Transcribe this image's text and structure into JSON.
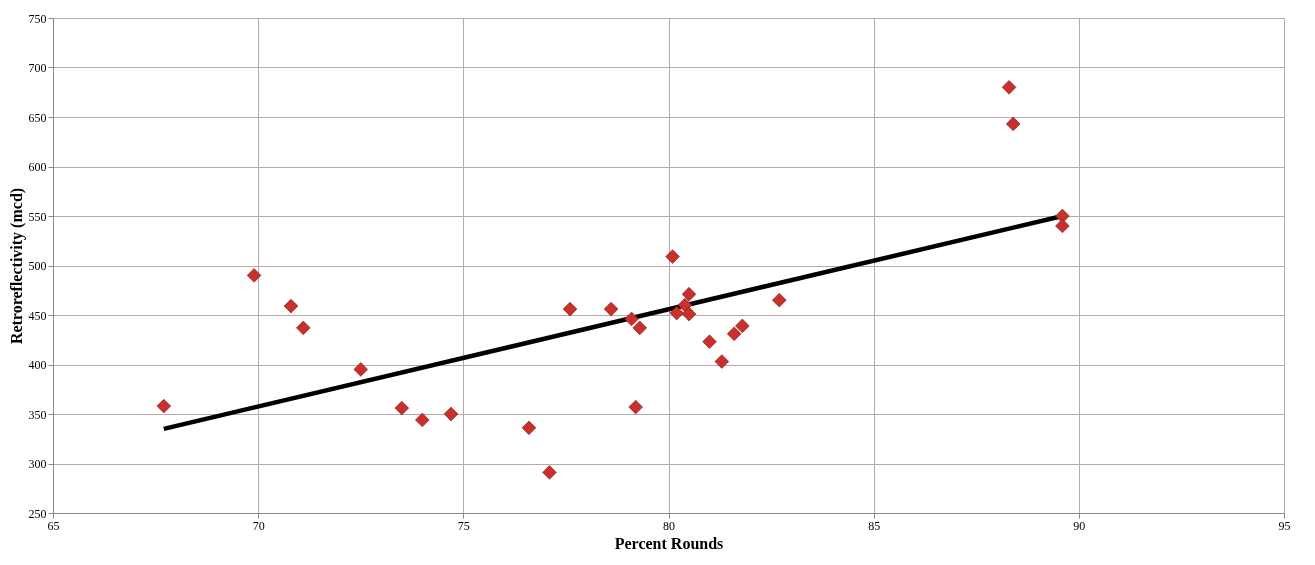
{
  "chart_data": {
    "type": "scatter",
    "xlabel": "Percent Rounds",
    "ylabel": "Retroreflectivity (mcd)",
    "xlim": [
      65,
      95
    ],
    "xticks": [
      65,
      70,
      75,
      80,
      85,
      90,
      95
    ],
    "ylim": [
      250,
      750
    ],
    "yticks": [
      250,
      300,
      350,
      400,
      450,
      500,
      550,
      600,
      650,
      700,
      750
    ],
    "grid": true,
    "marker": "diamond",
    "series": [
      {
        "color": "#c8302c",
        "x": [
          67.7,
          69.9,
          70.8,
          71.1,
          72.5,
          73.5,
          74.0,
          74.7,
          76.6,
          77.1,
          77.6,
          78.6,
          79.1,
          79.2,
          79.3,
          80.1,
          80.2,
          80.4,
          80.5,
          80.5,
          81.0,
          81.3,
          81.6,
          81.8,
          82.7,
          88.3,
          88.4,
          89.6,
          89.6
        ],
        "values": [
          358,
          490,
          459,
          437,
          395,
          356,
          344,
          350,
          336,
          291,
          456,
          456,
          446,
          357,
          437,
          509,
          452,
          460,
          471,
          451,
          423,
          403,
          431,
          439,
          465,
          680,
          643,
          550,
          540
        ]
      },
      {
        "type": "line",
        "color": "#000000",
        "marker": "none",
        "x": [
          67.7,
          89.6
        ],
        "values": [
          335,
          550
        ]
      }
    ]
  }
}
